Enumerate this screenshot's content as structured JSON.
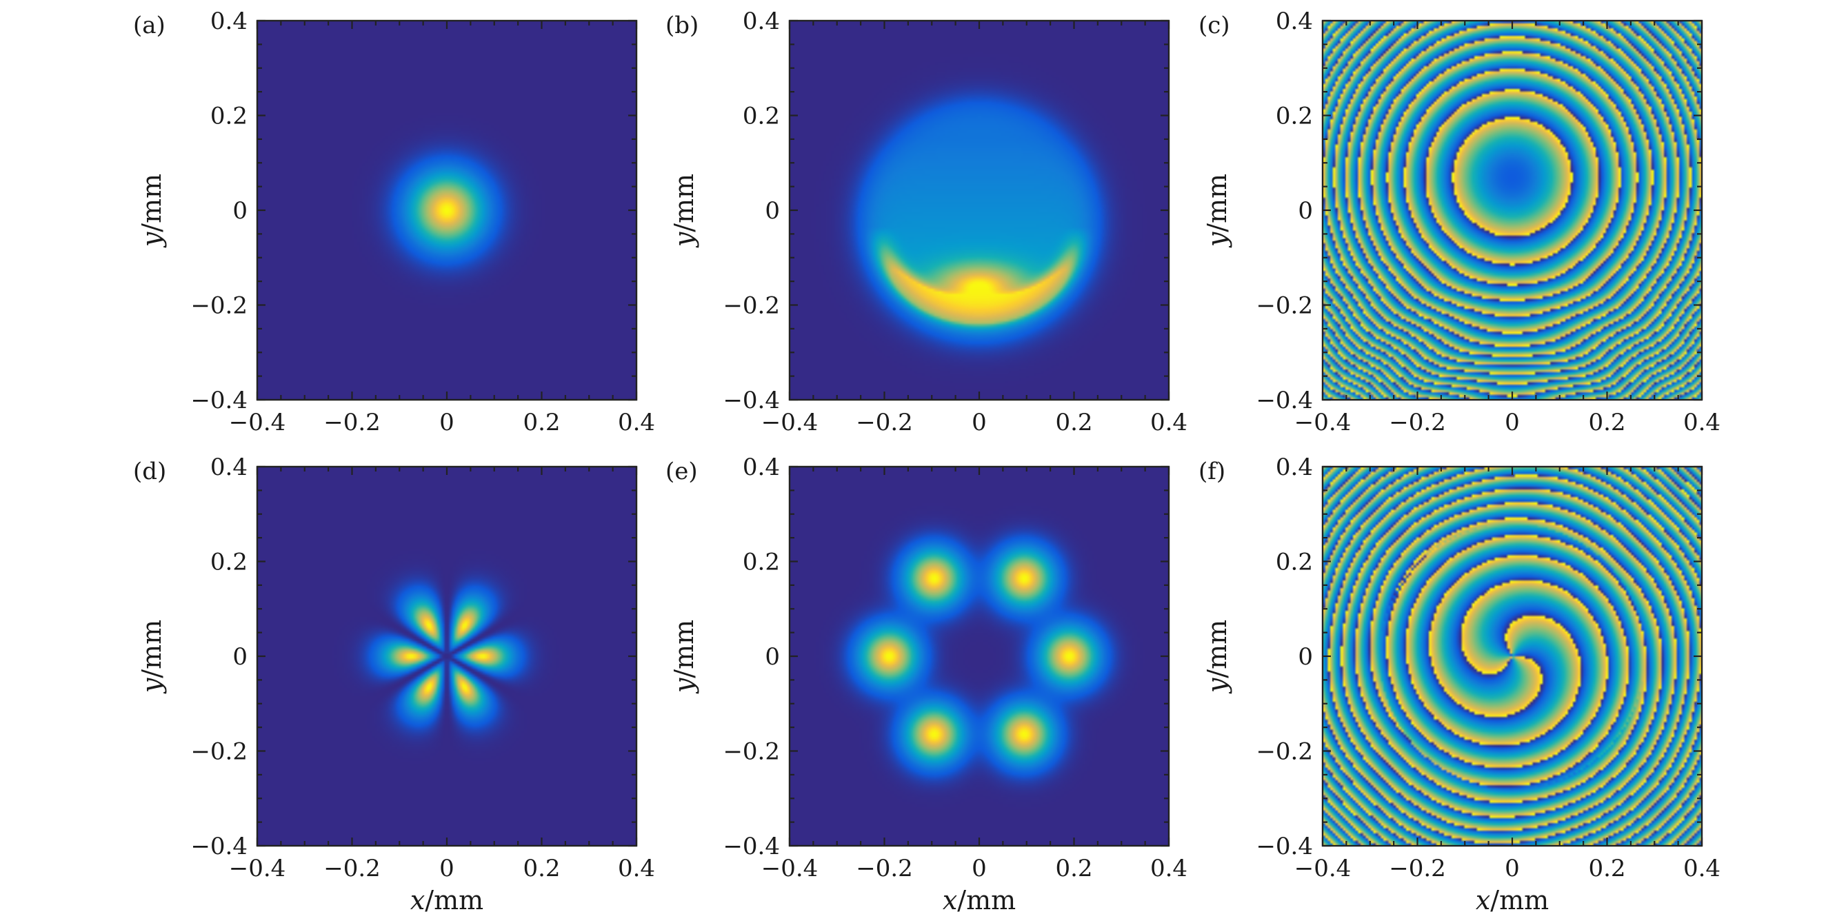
{
  "chart_data": [
    {
      "type": "heatmap",
      "panel_label": "(a)",
      "pattern": "gaussian-spot",
      "xlim": [
        -0.4,
        0.4
      ],
      "ylim": [
        -0.4,
        0.4
      ],
      "x_ticks": [
        "−0.4",
        "−0.2",
        "0",
        "0.2",
        "0.4"
      ],
      "y_ticks": [
        "0.4",
        "0.2",
        "0",
        "−0.2",
        "−0.4"
      ],
      "xlabel": "",
      "ylabel": "y/mm",
      "colormap": "parula"
    },
    {
      "type": "heatmap",
      "panel_label": "(b)",
      "pattern": "crescent",
      "xlim": [
        -0.4,
        0.4
      ],
      "ylim": [
        -0.4,
        0.4
      ],
      "x_ticks": [
        "−0.4",
        "−0.2",
        "0",
        "0.2",
        "0.4"
      ],
      "y_ticks": [
        "0.4",
        "0.2",
        "0",
        "−0.2",
        "−0.4"
      ],
      "xlabel": "",
      "ylabel": "y/mm",
      "colormap": "parula"
    },
    {
      "type": "heatmap",
      "panel_label": "(c)",
      "pattern": "phase-rings",
      "xlim": [
        -0.4,
        0.4
      ],
      "ylim": [
        -0.4,
        0.4
      ],
      "x_ticks": [
        "−0.4",
        "−0.2",
        "0",
        "0.2",
        "0.4"
      ],
      "y_ticks": [
        "0.4",
        "0.2",
        "0",
        "−0.2",
        "−0.4"
      ],
      "xlabel": "",
      "ylabel": "y/mm",
      "colormap": "parula"
    },
    {
      "type": "heatmap",
      "panel_label": "(d)",
      "pattern": "six-petal",
      "xlim": [
        -0.4,
        0.4
      ],
      "ylim": [
        -0.4,
        0.4
      ],
      "x_ticks": [
        "−0.4",
        "−0.2",
        "0",
        "0.2",
        "0.4"
      ],
      "y_ticks": [
        "0.4",
        "0.2",
        "0",
        "−0.2",
        "−0.4"
      ],
      "xlabel": "x/mm",
      "ylabel": "y/mm",
      "colormap": "parula"
    },
    {
      "type": "heatmap",
      "panel_label": "(e)",
      "pattern": "six-lobe-ring",
      "xlim": [
        -0.4,
        0.4
      ],
      "ylim": [
        -0.4,
        0.4
      ],
      "x_ticks": [
        "−0.4",
        "−0.2",
        "0",
        "0.2",
        "0.4"
      ],
      "y_ticks": [
        "0.4",
        "0.2",
        "0",
        "−0.2",
        "−0.4"
      ],
      "xlabel": "x/mm",
      "ylabel": "y/mm",
      "colormap": "parula"
    },
    {
      "type": "heatmap",
      "panel_label": "(f)",
      "pattern": "vortex-phase",
      "xlim": [
        -0.4,
        0.4
      ],
      "ylim": [
        -0.4,
        0.4
      ],
      "x_ticks": [
        "−0.4",
        "−0.2",
        "0",
        "0.2",
        "0.4"
      ],
      "y_ticks": [
        "0.4",
        "0.2",
        "0",
        "−0.2",
        "−0.4"
      ],
      "xlabel": "x/mm",
      "ylabel": "y/mm",
      "colormap": "parula"
    }
  ]
}
